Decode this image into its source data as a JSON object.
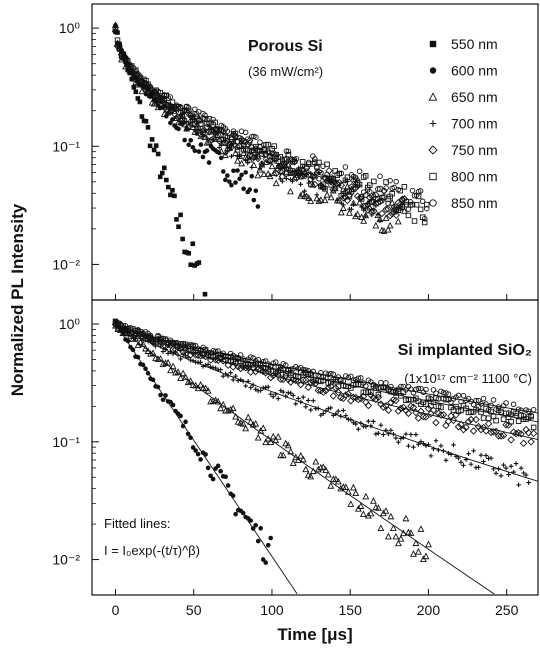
{
  "chart_data": {
    "type": "scatter",
    "xlabel": "Time [μs]",
    "ylabel": "Normalized PL Intensity",
    "xticks": [
      "0",
      "50",
      "100",
      "150",
      "200",
      "250"
    ],
    "xlim": [
      -15,
      270
    ],
    "yscale": "log",
    "legend_placement": "top-right",
    "panels": [
      {
        "id": "top",
        "title": "Porous Si",
        "subtitle": "(36 mW/cm²)",
        "ylim": [
          0.005,
          1.6
        ],
        "yticks": [
          {
            "value": 1,
            "label": "10⁰"
          },
          {
            "value": 0.1,
            "label": "10⁻¹"
          },
          {
            "value": 0.01,
            "label": "10⁻²"
          }
        ],
        "series": [
          {
            "name": "550 nm",
            "marker": "filled-square",
            "tau": 10,
            "beta": 0.95,
            "tmax": 62
          },
          {
            "name": "600 nm",
            "marker": "filled-circle",
            "tau": 14,
            "beta": 0.62,
            "tmax": 92
          },
          {
            "name": "650 nm",
            "marker": "open-triangle",
            "tau": 13,
            "beta": 0.5,
            "tmax": 185
          },
          {
            "name": "700 nm",
            "marker": "plus",
            "tau": 14,
            "beta": 0.5,
            "tmax": 170
          },
          {
            "name": "750 nm",
            "marker": "open-diamond",
            "tau": 15,
            "beta": 0.5,
            "tmax": 185
          },
          {
            "name": "800 nm",
            "marker": "open-square",
            "tau": 16,
            "beta": 0.5,
            "tmax": 200
          },
          {
            "name": "850 nm",
            "marker": "open-circle",
            "tau": 17,
            "beta": 0.5,
            "tmax": 200
          }
        ]
      },
      {
        "id": "bottom",
        "title": "Si implanted SiO₂",
        "subtitle": "(1x10¹⁷ cm⁻² 1100 °C)",
        "ylim": [
          0.005,
          1.6
        ],
        "yticks": [
          {
            "value": 1,
            "label": "10⁰"
          },
          {
            "value": 0.1,
            "label": "10⁻¹"
          },
          {
            "value": 0.01,
            "label": "10⁻²"
          }
        ],
        "annotation_line1": "Fitted lines:",
        "annotation_line2": "I = I₀exp(-(t/τ)^β)",
        "series": [
          {
            "marker": "filled-circle",
            "tau": 22,
            "beta": 1.0,
            "tmax": 100
          },
          {
            "marker": "open-triangle",
            "tau": 42,
            "beta": 0.95,
            "tmax": 200
          },
          {
            "marker": "plus",
            "tau": 72,
            "beta": 0.85,
            "tmax": 265
          },
          {
            "marker": "open-diamond",
            "tau": 100,
            "beta": 0.82,
            "tmax": 268
          },
          {
            "marker": "open-square",
            "tau": 120,
            "beta": 0.8,
            "tmax": 268
          },
          {
            "marker": "open-circle",
            "tau": 135,
            "beta": 0.8,
            "tmax": 268
          }
        ]
      }
    ]
  }
}
